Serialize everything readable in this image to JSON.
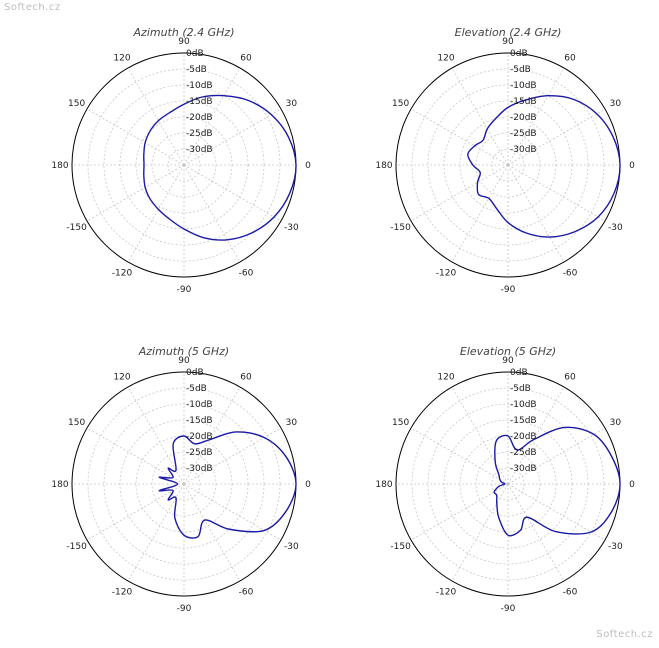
{
  "watermark": {
    "top": "Softech.cz",
    "bottom": "Softech.cz"
  },
  "colors": {
    "trace": "#1a1aa6",
    "grid": "#c8c8c8",
    "outer": "#000000"
  },
  "chart_data": [
    {
      "type": "polar-line",
      "title": "Azimuth (2.4 GHz)",
      "angle_ticks": [
        "0",
        "30",
        "60",
        "90",
        "120",
        "150",
        "180",
        "-150",
        "-120",
        "-90",
        "-60",
        "-30"
      ],
      "radial_ticks": [
        "0dB",
        "-5dB",
        "-10dB",
        "-15dB",
        "-20dB",
        "-25dB",
        "-30dB"
      ],
      "rlim_db": [
        -35,
        0
      ],
      "grid": true,
      "series": [
        {
          "angles_deg": [
            0,
            15,
            30,
            45,
            60,
            75,
            90,
            105,
            120,
            135,
            150,
            165,
            180,
            -165,
            -150,
            -135,
            -120,
            -105,
            -90,
            -75,
            -60,
            -45,
            -30,
            -15
          ],
          "gain_db": [
            0,
            -1.2,
            -3.5,
            -6.5,
            -10,
            -13,
            -16,
            -18,
            -19,
            -20,
            -21,
            -22,
            -22.5,
            -22,
            -21,
            -20,
            -19,
            -17.5,
            -15,
            -11.5,
            -8,
            -5,
            -2.5,
            -0.8
          ]
        }
      ]
    },
    {
      "type": "polar-line",
      "title": "Elevation (2.4 GHz)",
      "angle_ticks": [
        "0",
        "30",
        "60",
        "90",
        "120",
        "150",
        "180",
        "-150",
        "-120",
        "-90",
        "-60",
        "-30"
      ],
      "radial_ticks": [
        "0dB",
        "-5dB",
        "-10dB",
        "-15dB",
        "-20dB",
        "-25dB",
        "-30dB"
      ],
      "rlim_db": [
        -35,
        0
      ],
      "grid": true,
      "series": [
        {
          "angles_deg": [
            0,
            15,
            30,
            45,
            60,
            75,
            90,
            105,
            120,
            135,
            150,
            165,
            180,
            -165,
            -150,
            -135,
            -120,
            -105,
            -90,
            -75,
            -60,
            -45,
            -30,
            -15
          ],
          "gain_db": [
            0,
            -1,
            -3,
            -6,
            -10,
            -14,
            -17,
            -20,
            -22,
            -24,
            -23,
            -22,
            -24,
            -26,
            -24,
            -22,
            -23,
            -21,
            -17,
            -13,
            -9,
            -5.5,
            -2.5,
            -0.7
          ]
        }
      ]
    },
    {
      "type": "polar-line",
      "title": "Azimuth (5 GHz)",
      "angle_ticks": [
        "0",
        "30",
        "60",
        "90",
        "120",
        "150",
        "180",
        "-150",
        "-120",
        "-90",
        "-60",
        "-30"
      ],
      "radial_ticks": [
        "0dB",
        "-5dB",
        "-10dB",
        "-15dB",
        "-20dB",
        "-25dB",
        "-30dB"
      ],
      "rlim_db": [
        -35,
        0
      ],
      "grid": true,
      "series": [
        {
          "angles_deg": [
            0,
            15,
            30,
            45,
            60,
            75,
            90,
            105,
            120,
            135,
            150,
            165,
            180,
            -165,
            -150,
            -135,
            -120,
            -105,
            -90,
            -75,
            -60,
            -45,
            -30,
            -15
          ],
          "gain_db": [
            0,
            -2,
            -6,
            -12,
            -19,
            -22,
            -20,
            -22,
            -30,
            -28,
            -31,
            -27,
            -33,
            -27,
            -31,
            -28,
            -30,
            -24,
            -19,
            -18,
            -22,
            -15,
            -6,
            -2
          ]
        }
      ]
    },
    {
      "type": "polar-line",
      "title": "Elevation (5 GHz)",
      "angle_ticks": [
        "0",
        "30",
        "60",
        "90",
        "120",
        "150",
        "180",
        "-150",
        "-120",
        "-90",
        "-60",
        "-30"
      ],
      "radial_ticks": [
        "0dB",
        "-5dB",
        "-10dB",
        "-15dB",
        "-20dB",
        "-25dB",
        "-30dB"
      ],
      "rlim_db": [
        -35,
        0
      ],
      "grid": true,
      "series": [
        {
          "angles_deg": [
            0,
            15,
            30,
            45,
            60,
            75,
            90,
            105,
            120,
            135,
            150,
            165,
            180,
            -165,
            -150,
            -135,
            -120,
            -105,
            -90,
            -75,
            -60,
            -45,
            -30,
            -15
          ],
          "gain_db": [
            0,
            -1.5,
            -4,
            -10,
            -19,
            -24,
            -20,
            -21,
            -27,
            -31,
            -32,
            -33,
            -34,
            -32,
            -30,
            -30,
            -28,
            -24,
            -19,
            -20,
            -23,
            -14,
            -5,
            -1.5
          ]
        }
      ]
    }
  ]
}
